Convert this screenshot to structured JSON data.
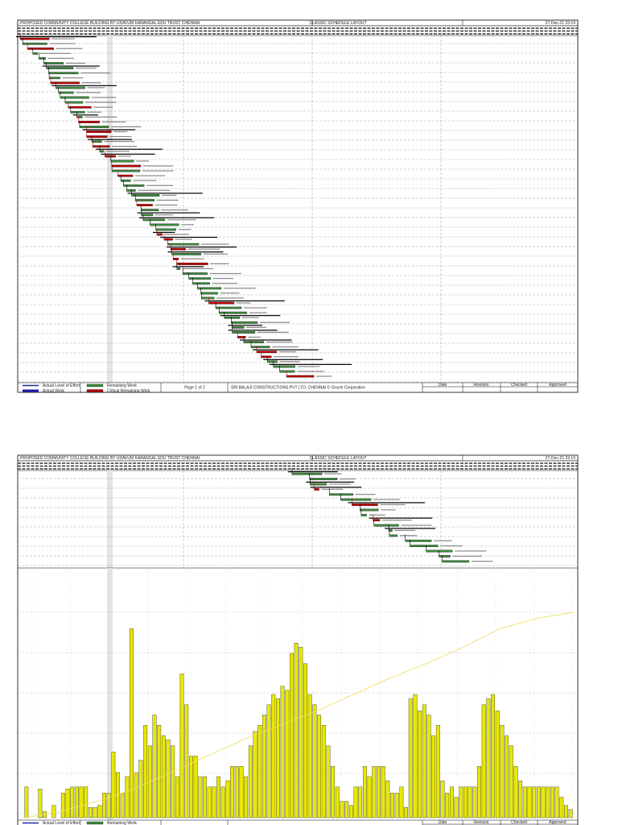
{
  "pages": [
    {
      "header": {
        "project": "PROPOSED COMMUNITY COLLEGE BUILDING BY UDAVUM KARANGAL EDU TRUST CHENNAI",
        "layout": "CLASSIC SCHEDULE LAYOUT",
        "date": "27-Dec-21 23:19"
      },
      "footer": {
        "page": "Page 1 of 2",
        "company": "SRI BALAJI CONSTRUCTIONS PVT LTD, CHENNAI © Oracle Corporation"
      }
    },
    {
      "header": {
        "project": "PROPOSED COMMUNITY COLLEGE BUILDING BY UDAVUM KARANGAL EDU TRUST CHENNAI",
        "layout": "CLASSIC SCHEDULE LAYOUT",
        "date": "27-Dec-21 23:19"
      }
    }
  ],
  "legend": [
    "Actual Level of Effort",
    "Actual Work",
    "Remaining Work",
    "Critical Remaining Work"
  ],
  "signoff": [
    "Date",
    "Revision",
    "Checked",
    "Approved"
  ],
  "chart_data": {
    "type": "bar",
    "color": "#e8e800",
    "ylim": [
      0,
      100
    ],
    "values": [
      15,
      0,
      0,
      14,
      3,
      0,
      6,
      0,
      12,
      14,
      15,
      15,
      15,
      15,
      5,
      5,
      6,
      12,
      12,
      32,
      22,
      12,
      20,
      92,
      22,
      28,
      45,
      35,
      50,
      45,
      40,
      38,
      35,
      20,
      70,
      55,
      30,
      30,
      20,
      20,
      15,
      15,
      20,
      15,
      18,
      25,
      25,
      25,
      20,
      35,
      42,
      45,
      50,
      55,
      60,
      58,
      64,
      62,
      80,
      85,
      83,
      75,
      60,
      55,
      50,
      45,
      35,
      25,
      15,
      8,
      8,
      6,
      15,
      15,
      25,
      20,
      25,
      25,
      25,
      18,
      12,
      12,
      15,
      5,
      58,
      60,
      52,
      55,
      50,
      40,
      45,
      18,
      12,
      15,
      10,
      15,
      15,
      15,
      15,
      25,
      55,
      58,
      60,
      52,
      45,
      40,
      35,
      25,
      18,
      15,
      15,
      15,
      15,
      15,
      15,
      15,
      15,
      10,
      6,
      4
    ],
    "cumulative": [
      0,
      3,
      8,
      14,
      22,
      30,
      38,
      45,
      52,
      60,
      68,
      75,
      83,
      92,
      97,
      100
    ]
  }
}
